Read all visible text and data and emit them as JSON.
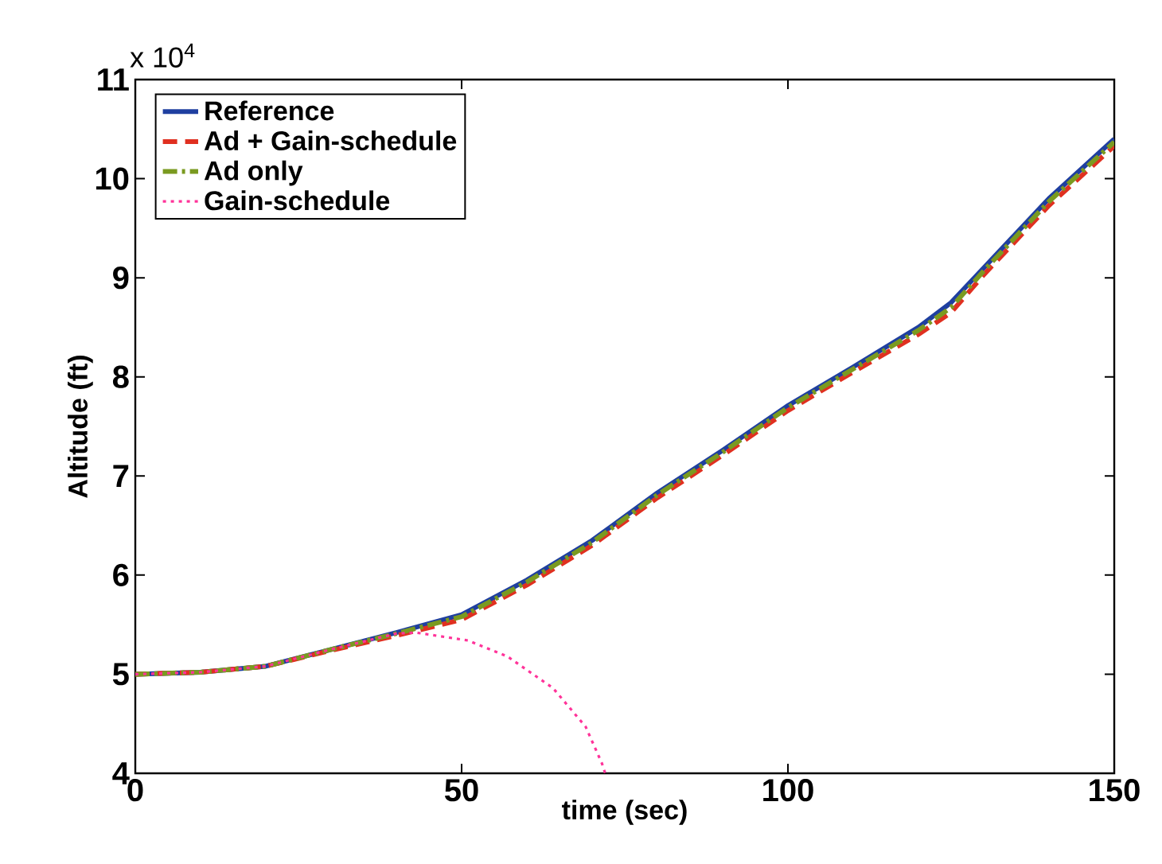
{
  "chart_data": {
    "type": "line",
    "xlabel": "time (sec)",
    "ylabel": "Altitude (ft)",
    "annotations": [
      "x 10$^{4}$"
    ],
    "xlim": [
      0,
      150
    ],
    "xticks": [
      0,
      50,
      100,
      150
    ],
    "ylim": [
      4,
      11
    ],
    "yticks": [
      4,
      5,
      6,
      7,
      8,
      9,
      10,
      11
    ],
    "legend": "top left",
    "grid": false,
    "series": [
      {
        "name": "Reference",
        "color": "#1f3fa0",
        "line_style": "solid",
        "x": [
          0,
          10,
          20,
          30,
          40,
          50,
          60,
          70,
          80,
          90,
          100,
          110,
          120,
          125,
          130,
          140,
          150
        ],
        "values": [
          5.0,
          5.02,
          5.08,
          5.25,
          5.42,
          5.6,
          5.95,
          6.35,
          6.83,
          7.26,
          7.71,
          8.1,
          8.5,
          8.75,
          9.1,
          9.8,
          10.4
        ]
      },
      {
        "name": "Ad + Gain-schedule",
        "color": "#e03020",
        "line_style": "dashed",
        "x": [
          0,
          10,
          20,
          30,
          40,
          50,
          60,
          70,
          80,
          90,
          100,
          110,
          120,
          125,
          130,
          140,
          150
        ],
        "values": [
          5.0,
          5.02,
          5.08,
          5.24,
          5.39,
          5.55,
          5.9,
          6.3,
          6.78,
          7.21,
          7.66,
          8.05,
          8.43,
          8.65,
          9.03,
          9.73,
          10.33
        ]
      },
      {
        "name": "Ad only",
        "color": "#7a9a20",
        "line_style": "dashdot",
        "x": [
          0,
          10,
          20,
          30,
          40,
          50,
          60,
          70,
          80,
          90,
          100,
          110,
          120,
          125,
          130,
          140,
          150
        ],
        "values": [
          5.0,
          5.02,
          5.08,
          5.25,
          5.41,
          5.58,
          5.93,
          6.33,
          6.81,
          7.24,
          7.69,
          8.08,
          8.47,
          8.7,
          9.07,
          9.77,
          10.37
        ]
      },
      {
        "name": "Gain-schedule",
        "color": "#ff3399",
        "line_style": "dotted",
        "x": [
          0,
          10,
          20,
          30,
          40,
          43,
          51,
          57,
          64,
          69,
          71.5,
          72
        ],
        "values": [
          5.0,
          5.02,
          5.08,
          5.25,
          5.41,
          5.42,
          5.34,
          5.18,
          4.86,
          4.47,
          4.1,
          4.0
        ]
      }
    ]
  }
}
